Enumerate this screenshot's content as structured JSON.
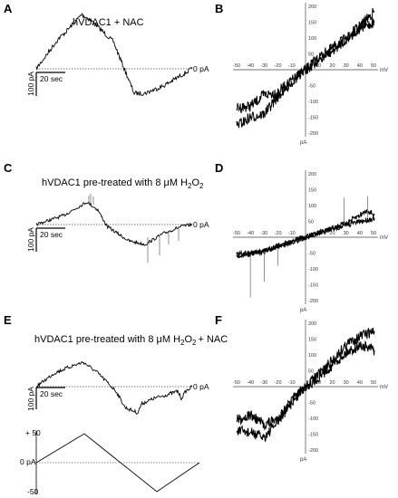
{
  "colors": {
    "trace": "#000000",
    "axis": "#444444",
    "background": "#ffffff"
  },
  "panels": {
    "A": {
      "letter": "A",
      "title": "hVDAC1 + NAC",
      "scale_y": "100 pA",
      "scale_x": "20 sec",
      "zero": "0 pA"
    },
    "B": {
      "letter": "B",
      "x_unit": "mV",
      "y_unit": "pA"
    },
    "C": {
      "letter": "C",
      "title_pre": "hVDAC1 pre-treated with 8 μM H",
      "title_sub1": "2",
      "title_mid": "O",
      "title_sub2": "2",
      "title_post": "",
      "scale_y": "100 pA",
      "scale_x": "20 sec",
      "zero": "0 pA"
    },
    "D": {
      "letter": "D",
      "x_unit": "mV",
      "y_unit": "pA"
    },
    "E": {
      "letter": "E",
      "title_pre": "hVDAC1 pre-treated with 8 μM H",
      "title_sub1": "2",
      "title_mid": "O",
      "title_sub2": "2",
      "title_post": "+ NAC",
      "scale_y": "100 pA",
      "scale_x": "20 sec",
      "zero": "0 pA"
    },
    "F": {
      "letter": "F",
      "x_unit": "mV",
      "y_unit": "pA"
    },
    "protocol": {
      "top": "+ 50",
      "zero": "0 pA",
      "bottom": "-50"
    }
  },
  "iv_x_ticks": [
    "-50",
    "-40",
    "-30",
    "-20",
    "-10",
    "10",
    "20",
    "30",
    "40",
    "50"
  ],
  "iv_y_ticks": [
    "200",
    "150",
    "100",
    "50",
    "-50",
    "-100",
    "-150",
    "-200"
  ]
}
